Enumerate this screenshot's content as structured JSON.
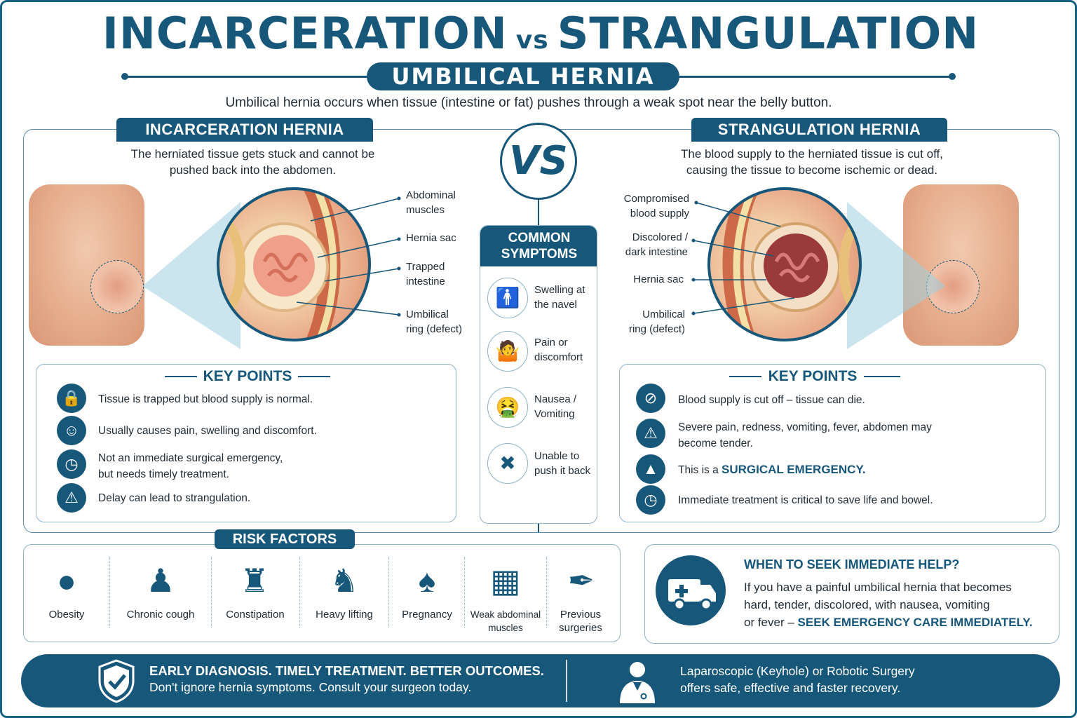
{
  "title": {
    "left": "INCARCERATION",
    "vs": "vs",
    "right": "STRANGULATION"
  },
  "subtitle": "UMBILICAL HERNIA",
  "intro": "Umbilical hernia occurs when tissue (intestine or fat) pushes through a weak spot near the belly button.",
  "vs_badge": "VS",
  "incarceration": {
    "heading": "INCARCERATION HERNIA",
    "desc_line1": "The herniated tissue gets stuck and cannot be",
    "desc_line2": "pushed back into the abdomen.",
    "labels": [
      [
        "Abdominal",
        "muscles"
      ],
      [
        "Hernia sac"
      ],
      [
        "Trapped",
        "intestine"
      ],
      [
        "Umbilical",
        "ring (defect)"
      ]
    ],
    "key_points_title": "KEY POINTS",
    "key_points": [
      {
        "icon": "lock-icon",
        "lines": [
          "Tissue is trapped but blood supply is normal."
        ]
      },
      {
        "icon": "person-pain-icon",
        "lines": [
          "Usually causes pain, swelling and discomfort."
        ]
      },
      {
        "icon": "clock-icon",
        "lines": [
          "Not an immediate surgical emergency,",
          "but needs timely treatment."
        ]
      },
      {
        "icon": "alarm-bell-icon",
        "lines": [
          "Delay can lead to strangulation."
        ]
      }
    ]
  },
  "strangulation": {
    "heading": "STRANGULATION HERNIA",
    "desc_line1": "The blood supply to the herniated tissue is cut off,",
    "desc_line2": "causing the tissue to become ischemic or dead.",
    "labels": [
      [
        "Compromised",
        "blood supply"
      ],
      [
        "Discolored /",
        "dark intestine"
      ],
      [
        "Hernia sac"
      ],
      [
        "Umbilical",
        "ring (defect)"
      ]
    ],
    "key_points_title": "KEY POINTS",
    "key_points": [
      {
        "icon": "no-blood-icon",
        "lines": [
          "Blood supply is cut off – tissue can die."
        ]
      },
      {
        "icon": "warning-icon",
        "lines": [
          "Severe pain, redness, vomiting, fever, abdomen may",
          "become tender."
        ]
      },
      {
        "icon": "siren-icon",
        "prefix": "This is a ",
        "emph": "SURGICAL EMERGENCY."
      },
      {
        "icon": "clock-icon",
        "lines": [
          "Immediate treatment is critical to save life and bowel."
        ]
      }
    ]
  },
  "symptoms": {
    "heading_line1": "COMMON",
    "heading_line2": "SYMPTOMS",
    "items": [
      {
        "icon": "standing-person-icon",
        "line1": "Swelling at",
        "line2": "the navel"
      },
      {
        "icon": "person-bending-pain-icon",
        "line1": "Pain or",
        "line2": "discomfort"
      },
      {
        "icon": "vomiting-icon",
        "line1": "Nausea /",
        "line2": "Vomiting"
      },
      {
        "icon": "cannot-push-icon",
        "line1": "Unable to",
        "line2": "push it back"
      }
    ]
  },
  "risk_factors": {
    "heading": "RISK FACTORS",
    "items": [
      {
        "icon": "obesity-icon",
        "line1": "Obesity",
        "line2": ""
      },
      {
        "icon": "cough-icon",
        "line1": "Chronic cough",
        "line2": ""
      },
      {
        "icon": "toilet-icon",
        "line1": "Constipation",
        "line2": ""
      },
      {
        "icon": "lifting-icon",
        "line1": "Heavy lifting",
        "line2": ""
      },
      {
        "icon": "pregnancy-icon",
        "line1": "Pregnancy",
        "line2": ""
      },
      {
        "icon": "abdominal-muscles-icon",
        "line1": "Weak abdominal",
        "line2": "muscles"
      },
      {
        "icon": "scalpel-icon",
        "line1": "Previous",
        "line2": "surgeries"
      }
    ]
  },
  "help": {
    "icon": "ambulance-icon",
    "title": "WHEN TO SEEK IMMEDIATE HELP?",
    "line1": "If you have a painful umbilical hernia that becomes",
    "line2": "hard, tender, discolored, with nausea, vomiting",
    "line3_prefix": "or fever – ",
    "line3_emph": "SEEK EMERGENCY CARE IMMEDIATELY."
  },
  "banner": {
    "left_line1": "EARLY DIAGNOSIS. TIMELY TREATMENT. BETTER OUTCOMES.",
    "left_line2": "Don't ignore hernia symptoms. Consult your surgeon today.",
    "right_line1": "Laparoscopic (Keyhole) or Robotic Surgery",
    "right_line2": "offers safe, effective and faster recovery."
  },
  "colors": {
    "primary": "#17577a",
    "skin": "#eab393",
    "intestine_healthy": "#f0a08a",
    "intestine_dead": "#9b3a3a"
  }
}
